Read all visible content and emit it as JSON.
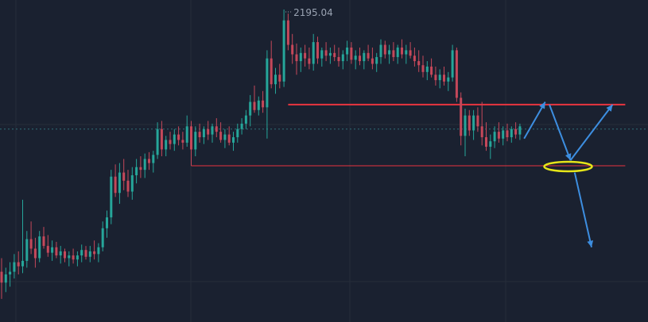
{
  "colors": {
    "background": "#1a2130",
    "grid": "#262d3a",
    "up": "#26a69a",
    "down": "#c5485a",
    "resistance": "#e8343f",
    "support": "#e8343f",
    "current_price_line": "#2f6f76",
    "arrow": "#3d8ee0",
    "ellipse": "#e6e619",
    "label": "#9aa3b2"
  },
  "peak_label": "2195.04",
  "chart_data": {
    "type": "candlestick",
    "title": "",
    "xlabel": "",
    "ylabel": "",
    "ylim": [
      1968,
      2205
    ],
    "grid": true,
    "current_price": 2110,
    "peak_price": 2195.04,
    "levels": [
      {
        "name": "resistance",
        "price": 2128,
        "from_index": 68,
        "to_index": 148
      },
      {
        "name": "support",
        "price": 2083,
        "from_index": 45,
        "to_index": 148
      }
    ],
    "projection_arrows": [
      {
        "from": [
          124,
          2103
        ],
        "to": [
          129,
          2130
        ]
      },
      {
        "from": [
          130,
          2128
        ],
        "to": [
          135,
          2087
        ]
      },
      {
        "from": [
          135,
          2087
        ],
        "to": [
          145,
          2128
        ]
      },
      {
        "from": [
          136,
          2078
        ],
        "to": [
          140,
          2023
        ]
      }
    ],
    "target_zone": {
      "index": 135,
      "price": 2083
    },
    "candles": [
      [
        2005,
        2015,
        1985,
        1997
      ],
      [
        1997,
        2008,
        1990,
        2003
      ],
      [
        2003,
        2012,
        1994,
        2005
      ],
      [
        2005,
        2018,
        2000,
        2012
      ],
      [
        2012,
        2020,
        2003,
        2009
      ],
      [
        2009,
        2058,
        2004,
        2013
      ],
      [
        2013,
        2035,
        2008,
        2029
      ],
      [
        2029,
        2042,
        2018,
        2022
      ],
      [
        2022,
        2030,
        2008,
        2015
      ],
      [
        2015,
        2035,
        2012,
        2031
      ],
      [
        2031,
        2038,
        2022,
        2024
      ],
      [
        2024,
        2032,
        2016,
        2019
      ],
      [
        2019,
        2028,
        2013,
        2023
      ],
      [
        2023,
        2027,
        2015,
        2017
      ],
      [
        2017,
        2024,
        2011,
        2020
      ],
      [
        2020,
        2022,
        2012,
        2015
      ],
      [
        2015,
        2020,
        2009,
        2017
      ],
      [
        2017,
        2022,
        2011,
        2014
      ],
      [
        2014,
        2020,
        2009,
        2017
      ],
      [
        2017,
        2025,
        2012,
        2021
      ],
      [
        2021,
        2024,
        2014,
        2016
      ],
      [
        2016,
        2024,
        2012,
        2020
      ],
      [
        2020,
        2028,
        2014,
        2018
      ],
      [
        2018,
        2026,
        2012,
        2023
      ],
      [
        2023,
        2042,
        2020,
        2037
      ],
      [
        2037,
        2050,
        2030,
        2045
      ],
      [
        2045,
        2080,
        2040,
        2075
      ],
      [
        2075,
        2084,
        2060,
        2063
      ],
      [
        2063,
        2085,
        2055,
        2078
      ],
      [
        2078,
        2088,
        2065,
        2072
      ],
      [
        2072,
        2080,
        2060,
        2064
      ],
      [
        2064,
        2082,
        2058,
        2076
      ],
      [
        2076,
        2088,
        2070,
        2082
      ],
      [
        2082,
        2090,
        2074,
        2080
      ],
      [
        2080,
        2092,
        2074,
        2088
      ],
      [
        2088,
        2093,
        2080,
        2085
      ],
      [
        2085,
        2094,
        2078,
        2091
      ],
      [
        2091,
        2115,
        2088,
        2110
      ],
      [
        2110,
        2116,
        2090,
        2095
      ],
      [
        2095,
        2105,
        2090,
        2102
      ],
      [
        2102,
        2108,
        2095,
        2099
      ],
      [
        2099,
        2110,
        2094,
        2106
      ],
      [
        2106,
        2112,
        2098,
        2102
      ],
      [
        2102,
        2108,
        2095,
        2100
      ],
      [
        2100,
        2120,
        2097,
        2112
      ],
      [
        2112,
        2116,
        2083,
        2095
      ],
      [
        2095,
        2112,
        2090,
        2108
      ],
      [
        2108,
        2114,
        2100,
        2104
      ],
      [
        2104,
        2112,
        2099,
        2110
      ],
      [
        2110,
        2116,
        2102,
        2106
      ],
      [
        2106,
        2114,
        2100,
        2112
      ],
      [
        2112,
        2118,
        2104,
        2108
      ],
      [
        2108,
        2115,
        2100,
        2102
      ],
      [
        2102,
        2110,
        2096,
        2106
      ],
      [
        2106,
        2112,
        2098,
        2100
      ],
      [
        2100,
        2108,
        2094,
        2104
      ],
      [
        2104,
        2114,
        2100,
        2110
      ],
      [
        2110,
        2118,
        2106,
        2114
      ],
      [
        2114,
        2124,
        2110,
        2120
      ],
      [
        2120,
        2135,
        2112,
        2130
      ],
      [
        2130,
        2142,
        2122,
        2124
      ],
      [
        2124,
        2134,
        2120,
        2131
      ],
      [
        2131,
        2138,
        2122,
        2126
      ],
      [
        2126,
        2168,
        2103,
        2162
      ],
      [
        2162,
        2175,
        2140,
        2143
      ],
      [
        2143,
        2155,
        2136,
        2150
      ],
      [
        2150,
        2158,
        2140,
        2145
      ],
      [
        2145,
        2198,
        2141,
        2190
      ],
      [
        2190,
        2195,
        2168,
        2172
      ],
      [
        2172,
        2180,
        2158,
        2165
      ],
      [
        2165,
        2173,
        2150,
        2160
      ],
      [
        2160,
        2170,
        2152,
        2166
      ],
      [
        2166,
        2172,
        2156,
        2162
      ],
      [
        2162,
        2170,
        2154,
        2158
      ],
      [
        2158,
        2180,
        2153,
        2174
      ],
      [
        2174,
        2178,
        2158,
        2162
      ],
      [
        2162,
        2170,
        2156,
        2168
      ],
      [
        2168,
        2174,
        2160,
        2164
      ],
      [
        2164,
        2170,
        2158,
        2166
      ],
      [
        2166,
        2172,
        2160,
        2163
      ],
      [
        2163,
        2170,
        2156,
        2160
      ],
      [
        2160,
        2168,
        2154,
        2165
      ],
      [
        2165,
        2175,
        2160,
        2170
      ],
      [
        2170,
        2174,
        2158,
        2161
      ],
      [
        2161,
        2168,
        2154,
        2164
      ],
      [
        2164,
        2170,
        2157,
        2160
      ],
      [
        2160,
        2168,
        2154,
        2166
      ],
      [
        2166,
        2172,
        2160,
        2162
      ],
      [
        2162,
        2170,
        2154,
        2158
      ],
      [
        2158,
        2166,
        2152,
        2163
      ],
      [
        2163,
        2176,
        2158,
        2172
      ],
      [
        2172,
        2175,
        2162,
        2165
      ],
      [
        2165,
        2172,
        2158,
        2168
      ],
      [
        2168,
        2174,
        2160,
        2163
      ],
      [
        2163,
        2172,
        2158,
        2170
      ],
      [
        2170,
        2176,
        2162,
        2165
      ],
      [
        2165,
        2172,
        2158,
        2168
      ],
      [
        2168,
        2174,
        2162,
        2164
      ],
      [
        2164,
        2170,
        2156,
        2160
      ],
      [
        2160,
        2168,
        2152,
        2157
      ],
      [
        2157,
        2164,
        2148,
        2152
      ],
      [
        2152,
        2160,
        2146,
        2156
      ],
      [
        2156,
        2162,
        2148,
        2150
      ],
      [
        2150,
        2156,
        2142,
        2146
      ],
      [
        2146,
        2154,
        2140,
        2150
      ],
      [
        2150,
        2156,
        2142,
        2145
      ],
      [
        2145,
        2152,
        2138,
        2148
      ],
      [
        2148,
        2172,
        2145,
        2168
      ],
      [
        2168,
        2170,
        2130,
        2133
      ],
      [
        2133,
        2137,
        2098,
        2105
      ],
      [
        2105,
        2125,
        2090,
        2120
      ],
      [
        2120,
        2124,
        2105,
        2109
      ],
      [
        2109,
        2124,
        2102,
        2120
      ],
      [
        2120,
        2126,
        2108,
        2112
      ],
      [
        2112,
        2130,
        2098,
        2104
      ],
      [
        2104,
        2115,
        2094,
        2097
      ],
      [
        2097,
        2106,
        2088,
        2101
      ],
      [
        2101,
        2112,
        2096,
        2108
      ],
      [
        2108,
        2115,
        2100,
        2103
      ],
      [
        2103,
        2112,
        2098,
        2109
      ],
      [
        2109,
        2114,
        2101,
        2104
      ],
      [
        2104,
        2112,
        2100,
        2110
      ],
      [
        2110,
        2115,
        2103,
        2106
      ],
      [
        2106,
        2114,
        2102,
        2112
      ]
    ]
  }
}
